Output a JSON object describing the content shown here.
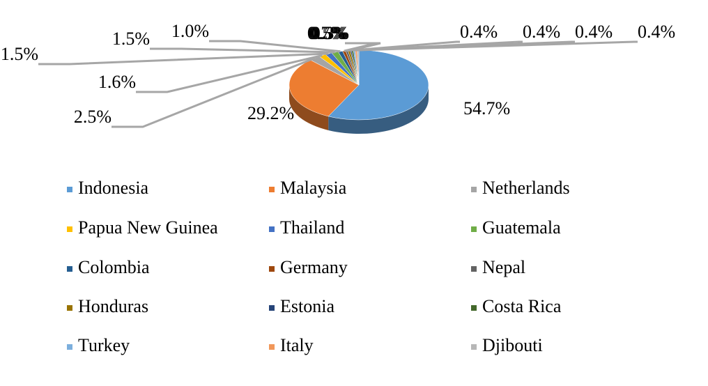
{
  "chart_data": {
    "type": "pie",
    "categories": [
      "Indonesia",
      "Malaysia",
      "Netherlands",
      "Papua New Guinea",
      "Thailand",
      "Guatemala",
      "Colombia",
      "Germany",
      "Nepal",
      "Honduras",
      "Estonia",
      "Costa Rica",
      "Turkey",
      "Italy",
      "Djibouti"
    ],
    "values": [
      54.7,
      29.2,
      2.5,
      1.6,
      1.5,
      1.5,
      1.0,
      0.7,
      0.5,
      0.5,
      0.3,
      0.4,
      0.4,
      0.4,
      0.4
    ],
    "value_labels": [
      "54.7%",
      "29.2%",
      "2.5%",
      "1.6%",
      "1.5%",
      "1.5%",
      "1.0%",
      "0.7%",
      "0.5%",
      "0.5%",
      "0.3%",
      "0.4%",
      "0.4%",
      "0.4%",
      "0.4%"
    ],
    "colors": [
      "#5b9bd5",
      "#ed7d31",
      "#a5a5a5",
      "#ffc000",
      "#4472c4",
      "#70ad47",
      "#255e91",
      "#9e480e",
      "#636363",
      "#997300",
      "#264478",
      "#43682b",
      "#7cafdd",
      "#f1975a",
      "#b7b7b7"
    ],
    "legend": "bottom"
  }
}
